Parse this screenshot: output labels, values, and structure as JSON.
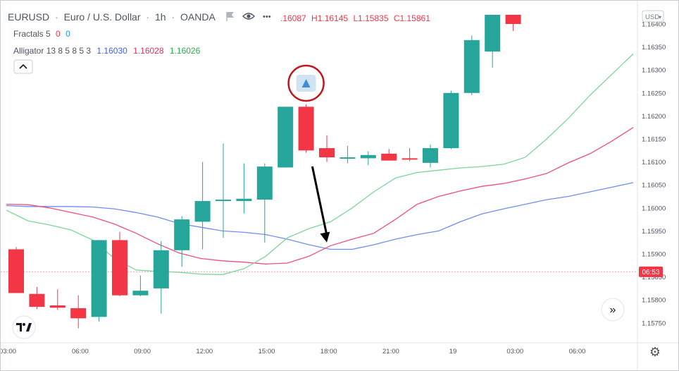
{
  "header": {
    "symbol": "EURUSD",
    "name": "Euro / U.S. Dollar",
    "interval": "1h",
    "exchange": "OANDA",
    "ohlc_partial": ".16087",
    "high": "H1.16145",
    "low": "L1.15835",
    "close": "C1.15861",
    "fractals_label": "Fractals 5",
    "fractals_v1": "0",
    "fractals_v2": "0",
    "alligator_label": "Alligator 13 8 5 8 5 3",
    "alligator_v1": "1.16030",
    "alligator_v2": "1.16028",
    "alligator_v3": "1.16026",
    "currency": "USD",
    "currency_caret": "▾",
    "more": "•••",
    "collapse": "⌃",
    "scroll": "»",
    "logo": "17",
    "gear": "⚙"
  },
  "price_tag": "06:53",
  "colors": {
    "up": "#26a69a",
    "down": "#f23645",
    "jaw": "#6f8ff0",
    "teeth": "#f0507a",
    "lips": "#7fd49a",
    "annotation": "#c0161c",
    "arrow": "#000000",
    "fractal": "#3f8fd0"
  },
  "chart_data": {
    "type": "candlestick",
    "symbol": "EURUSD",
    "timeframe": "1h",
    "y_ticks": [
      "1.16400",
      "1.16350",
      "1.16300",
      "1.16250",
      "1.16200",
      "1.16150",
      "1.16100",
      "1.16050",
      "1.16000",
      "1.15950",
      "1.15900",
      "1.15850",
      "1.15800",
      "1.15750"
    ],
    "x_ticks": [
      {
        "label": "03:00",
        "i": 0
      },
      {
        "label": "06:00",
        "i": 3.5
      },
      {
        "label": "09:00",
        "i": 6.5
      },
      {
        "label": "12:00",
        "i": 9.5
      },
      {
        "label": "15:00",
        "i": 12.5
      },
      {
        "label": "18:00",
        "i": 15.5
      },
      {
        "label": "21:00",
        "i": 18.5
      },
      {
        "label": "19",
        "i": 21.5
      },
      {
        "label": "03:00",
        "i": 24.5
      },
      {
        "label": "06:00",
        "i": 27.5
      }
    ],
    "ylim": [
      1.15705,
      1.1641
    ],
    "candles": [
      {
        "o": 1.1591,
        "h": 1.15915,
        "l": 1.15815,
        "c": 1.15815
      },
      {
        "o": 1.15813,
        "h": 1.15828,
        "l": 1.1578,
        "c": 1.15785
      },
      {
        "o": 1.15788,
        "h": 1.15823,
        "l": 1.15778,
        "c": 1.15783
      },
      {
        "o": 1.15782,
        "h": 1.1581,
        "l": 1.15738,
        "c": 1.1576
      },
      {
        "o": 1.15763,
        "h": 1.1593,
        "l": 1.15753,
        "c": 1.1593
      },
      {
        "o": 1.1593,
        "h": 1.15948,
        "l": 1.15808,
        "c": 1.1581
      },
      {
        "o": 1.1581,
        "h": 1.15853,
        "l": 1.15808,
        "c": 1.1582
      },
      {
        "o": 1.15825,
        "h": 1.15928,
        "l": 1.1577,
        "c": 1.15908
      },
      {
        "o": 1.15908,
        "h": 1.15982,
        "l": 1.15872,
        "c": 1.15975
      },
      {
        "o": 1.1597,
        "h": 1.161,
        "l": 1.1591,
        "c": 1.16015
      },
      {
        "o": 1.16015,
        "h": 1.1614,
        "l": 1.15935,
        "c": 1.16018
      },
      {
        "o": 1.16015,
        "h": 1.16097,
        "l": 1.15988,
        "c": 1.1602
      },
      {
        "o": 1.16018,
        "h": 1.16097,
        "l": 1.15925,
        "c": 1.1609
      },
      {
        "o": 1.16088,
        "h": 1.1622,
        "l": 1.16088,
        "c": 1.1622
      },
      {
        "o": 1.1622,
        "h": 1.16225,
        "l": 1.1612,
        "c": 1.16125
      },
      {
        "o": 1.1613,
        "h": 1.16158,
        "l": 1.161,
        "c": 1.1611
      },
      {
        "o": 1.1611,
        "h": 1.16135,
        "l": 1.16097,
        "c": 1.1611
      },
      {
        "o": 1.16108,
        "h": 1.16123,
        "l": 1.16093,
        "c": 1.16115
      },
      {
        "o": 1.16118,
        "h": 1.16128,
        "l": 1.16103,
        "c": 1.16103
      },
      {
        "o": 1.16108,
        "h": 1.1613,
        "l": 1.16102,
        "c": 1.16105
      },
      {
        "o": 1.16098,
        "h": 1.16138,
        "l": 1.16088,
        "c": 1.1613
      },
      {
        "o": 1.1613,
        "h": 1.16255,
        "l": 1.16128,
        "c": 1.1625
      },
      {
        "o": 1.1625,
        "h": 1.16375,
        "l": 1.16245,
        "c": 1.16365
      },
      {
        "o": 1.1634,
        "h": 1.1642,
        "l": 1.16305,
        "c": 1.1642
      },
      {
        "o": 1.1642,
        "h": 1.1642,
        "l": 1.16385,
        "c": 1.164
      }
    ],
    "series": [
      {
        "type": "line",
        "values": [
          1.16005,
          1.16003,
          1.16003,
          1.16003,
          1.16002,
          1.15998,
          1.1599,
          1.1598,
          1.15966,
          1.15958,
          1.1595,
          1.15947,
          1.15942,
          1.15932,
          1.1592,
          1.1591,
          1.1591,
          1.1592,
          1.15932,
          1.15942,
          1.1595,
          1.1597,
          1.15987,
          1.15998,
          1.16008,
          1.16018,
          1.16025,
          1.16035,
          1.16045,
          1.16055
        ]
      },
      {
        "type": "line",
        "values": [
          1.16008,
          1.16007,
          1.16,
          1.1599,
          1.1598,
          1.15965,
          1.15945,
          1.15922,
          1.15902,
          1.1589,
          1.15885,
          1.15882,
          1.15878,
          1.1588,
          1.15895,
          1.15918,
          1.15932,
          1.15945,
          1.15975,
          1.16008,
          1.16025,
          1.16037,
          1.16047,
          1.16053,
          1.16063,
          1.16075,
          1.16098,
          1.16118,
          1.16145,
          1.16175
        ]
      },
      {
        "type": "line",
        "values": [
          1.15995,
          1.15972,
          1.15963,
          1.15952,
          1.1593,
          1.1589,
          1.15865,
          1.15862,
          1.1586,
          1.15856,
          1.15855,
          1.15868,
          1.15895,
          1.15935,
          1.15955,
          1.1597,
          1.16,
          1.16035,
          1.16065,
          1.16077,
          1.16082,
          1.16087,
          1.1609,
          1.16095,
          1.1611,
          1.1615,
          1.16195,
          1.16245,
          1.1629,
          1.16335
        ]
      }
    ],
    "markers": [
      {
        "kind": "fractal-up",
        "i": 14
      }
    ],
    "annotations": [
      {
        "kind": "circle",
        "around": "fractal-up"
      },
      {
        "kind": "arrow",
        "from_i": 14.3,
        "from": 1.1609,
        "to_i": 15.0,
        "to": 1.15925
      }
    ],
    "current_price_line": 1.15861
  }
}
